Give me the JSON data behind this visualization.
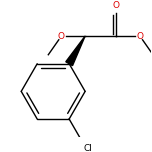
{
  "background_color": "#ffffff",
  "figsize": [
    1.52,
    1.52
  ],
  "dpi": 100,
  "bond_color": "#000000",
  "atom_colors": {
    "O": "#dd0000",
    "Cl": "#000000"
  },
  "font_size": 6.5
}
